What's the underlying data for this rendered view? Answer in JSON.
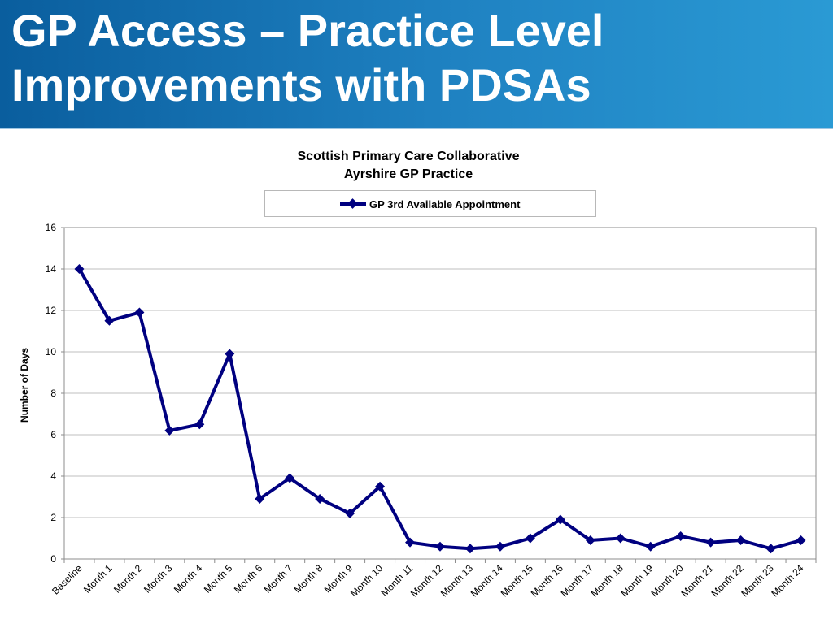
{
  "slide": {
    "title": "GP Access – Practice Level Improvements with PDSAs",
    "banner_color": "#1a7bbd"
  },
  "chart_data": {
    "type": "line",
    "title": [
      "Scottish Primary Care Collaborative",
      "Ayrshire GP Practice"
    ],
    "xlabel": "",
    "ylabel": "Number of Days",
    "ylim": [
      0,
      16
    ],
    "yticks": [
      0,
      2,
      4,
      6,
      8,
      10,
      12,
      14,
      16
    ],
    "grid": true,
    "legend_position": "top",
    "categories": [
      "Baseline",
      "Month 1",
      "Month 2",
      "Month 3",
      "Month 4",
      "Month 5",
      "Month 6",
      "Month 7",
      "Month 8",
      "Month 9",
      "Month 10",
      "Month 11",
      "Month 12",
      "Month 13",
      "Month 14",
      "Month 15",
      "Month 16",
      "Month 17",
      "Month 18",
      "Month 19",
      "Month 20",
      "Month 21",
      "Month 22",
      "Month 23",
      "Month 24"
    ],
    "series": [
      {
        "name": "GP 3rd Available Appointment",
        "color": "#000080",
        "marker": "diamond",
        "values": [
          14.0,
          11.5,
          11.9,
          6.2,
          6.5,
          9.9,
          2.9,
          3.9,
          2.9,
          2.2,
          3.5,
          0.8,
          0.6,
          0.5,
          0.6,
          1.0,
          1.9,
          0.9,
          1.0,
          0.6,
          1.1,
          0.8,
          0.9,
          0.5,
          0.9
        ]
      }
    ]
  }
}
